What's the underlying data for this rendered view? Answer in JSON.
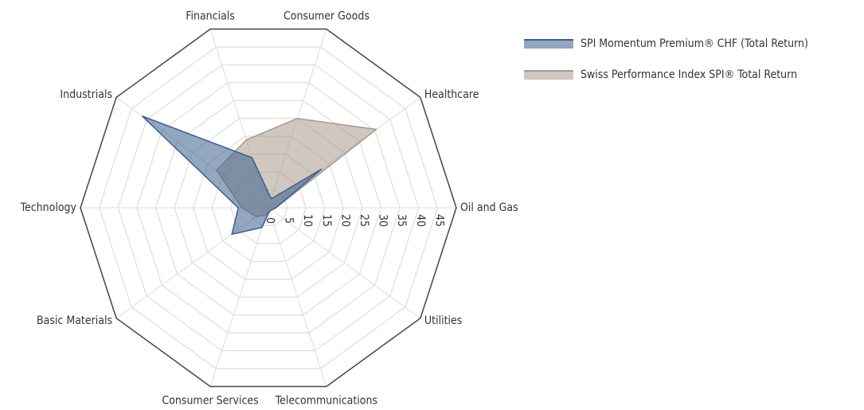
{
  "chart_data": {
    "type": "radar",
    "categories": [
      "Financials",
      "Consumer Goods",
      "Healthcare",
      "Oil and Gas",
      "Utilities",
      "Telecommunications",
      "Consumer Services",
      "Basic Materials",
      "Technology",
      "Industrials"
    ],
    "series": [
      {
        "name": "SPI Momentum Premium® CHF (Total Return)",
        "color": "#3d5f8c",
        "values": [
          14,
          2.5,
          17.5,
          2,
          1,
          1,
          5.5,
          12,
          8,
          41.5
        ]
      },
      {
        "name": "Swiss Performance Index SPI® Total Return",
        "color": "#a8998c",
        "values": [
          19,
          25,
          35.5,
          2,
          1,
          1,
          2,
          4,
          7,
          17
        ]
      }
    ],
    "ylim": [
      0,
      50
    ],
    "yticks": [
      0,
      5,
      10,
      15,
      20,
      25,
      30,
      35,
      40,
      45
    ],
    "grid": true,
    "legend": "top-right"
  }
}
